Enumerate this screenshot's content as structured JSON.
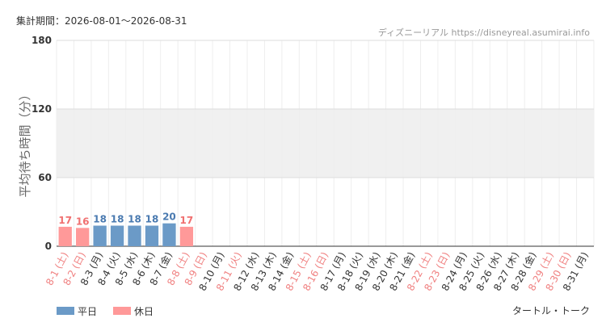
{
  "chart_data": {
    "type": "bar",
    "title": "集計期間：2026-08-01〜2026-08-31",
    "source": "ディズニーリアル https://disneyreal.asumirai.info",
    "subtitle": "タートル・トーク",
    "y_label": "平均待ち時間（分）",
    "categories": [
      "8-1 (土)",
      "8-2 (日)",
      "8-3 (月)",
      "8-4 (火)",
      "8-5 (水)",
      "8-6 (木)",
      "8-7 (金)",
      "8-8 (土)",
      "8-9 (日)",
      "8-10 (月)",
      "8-11 (火)",
      "8-12 (水)",
      "8-13 (木)",
      "8-14 (金)",
      "8-15 (土)",
      "8-16 (日)",
      "8-17 (月)",
      "8-18 (火)",
      "8-19 (水)",
      "8-20 (木)",
      "8-21 (金)",
      "8-22 (土)",
      "8-23 (日)",
      "8-24 (月)",
      "8-25 (火)",
      "8-26 (水)",
      "8-27 (木)",
      "8-28 (金)",
      "8-29 (土)",
      "8-30 (日)",
      "8-31 (月)"
    ],
    "category_colors": [
      "#f08080",
      "#f08080",
      "#333333",
      "#333333",
      "#333333",
      "#333333",
      "#333333",
      "#f08080",
      "#f08080",
      "#333333",
      "#f08080",
      "#333333",
      "#333333",
      "#333333",
      "#f08080",
      "#f08080",
      "#333333",
      "#333333",
      "#333333",
      "#333333",
      "#333333",
      "#f08080",
      "#f08080",
      "#333333",
      "#333333",
      "#333333",
      "#333333",
      "#333333",
      "#f08080",
      "#f08080",
      "#333333"
    ],
    "series": [
      {
        "name": "平日",
        "color": "#6b9ac7",
        "label_color": "#4a7ab0",
        "values": [
          null,
          null,
          18,
          18,
          18,
          18,
          20,
          null,
          null,
          null,
          null,
          null,
          null,
          null,
          null,
          null,
          null,
          null,
          null,
          null,
          null,
          null,
          null,
          null,
          null,
          null,
          null,
          null,
          null,
          null,
          null
        ]
      },
      {
        "name": "休日",
        "color": "#ff9999",
        "label_color": "#f07070",
        "values": [
          17,
          16,
          null,
          null,
          null,
          null,
          null,
          17,
          null,
          null,
          null,
          null,
          null,
          null,
          null,
          null,
          null,
          null,
          null,
          null,
          null,
          null,
          null,
          null,
          null,
          null,
          null,
          null,
          null,
          null,
          null
        ]
      }
    ],
    "ylim": [
      0,
      180
    ],
    "yticks": [
      0,
      60,
      120,
      180
    ],
    "band": [
      60,
      120
    ],
    "grid": true
  }
}
